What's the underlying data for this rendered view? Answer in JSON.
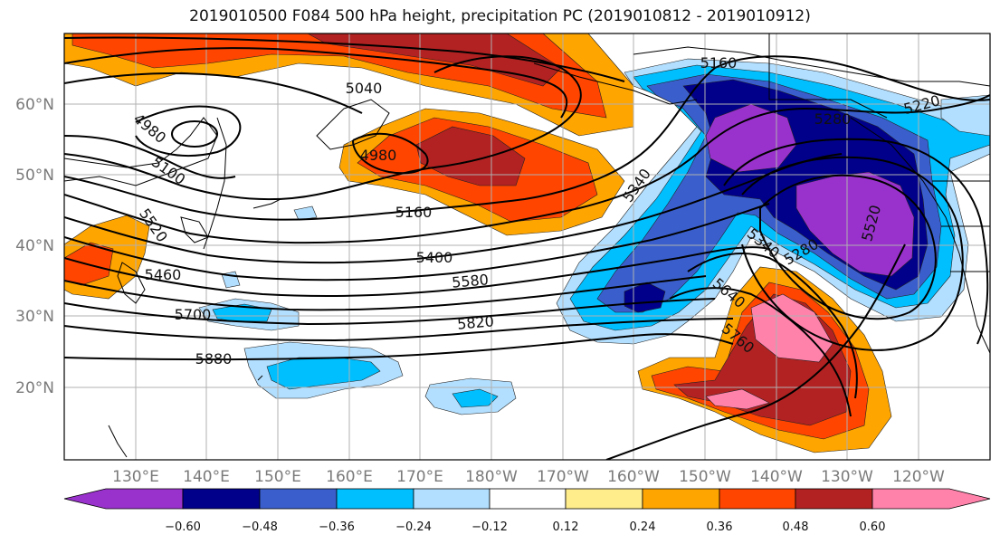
{
  "title": "2019010500 F084 500 hPa height, precipitation PC (2019010812 - 2019010912)",
  "colors": {
    "lt_m060": "#9932cc",
    "m060_m048": "#00008b",
    "m048_m036": "#3a5fcd",
    "m036_m024": "#00bfff",
    "m024_m012": "#b2dfff",
    "m012_p012": "#ffffff",
    "p012_p024": "#ffec8b",
    "p024_p036": "#ffa500",
    "p036_p048": "#ff4500",
    "p048_p060": "#b22222",
    "gt_p060": "#ff82ab",
    "contour": "#000000",
    "grid": "#b0b0b0",
    "coast": "#000000"
  },
  "lat_labels": [
    "60°N",
    "50°N",
    "40°N",
    "30°N",
    "20°N"
  ],
  "lon_labels": [
    "130°E",
    "140°E",
    "150°E",
    "160°E",
    "170°E",
    "180°W",
    "170°W",
    "160°W",
    "150°W",
    "140°W",
    "130°W",
    "120°W"
  ],
  "contour_labels": [
    "5040",
    "4980",
    "4980",
    "5100",
    "5160",
    "5160",
    "5220",
    "5280",
    "5340",
    "5340",
    "5400",
    "5460",
    "5520",
    "5520",
    "5580",
    "5640",
    "5700",
    "5760",
    "5820",
    "5880",
    "5280"
  ],
  "colorbar": {
    "ticks": [
      "−0.60",
      "−0.48",
      "−0.36",
      "−0.24",
      "−0.12",
      "0.12",
      "0.24",
      "0.36",
      "0.48",
      "0.60"
    ]
  }
}
